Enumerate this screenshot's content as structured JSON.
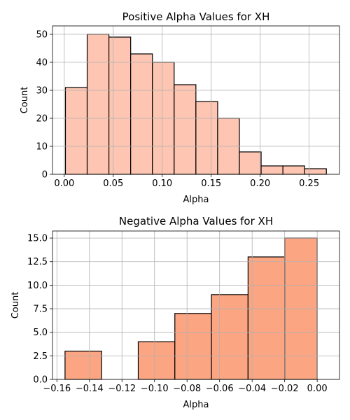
{
  "chart_data": [
    {
      "type": "bar",
      "title": "Positive Alpha Values for XH",
      "xlabel": "Alpha",
      "ylabel": "Count",
      "bin_edges": [
        0.0012,
        0.0234,
        0.0456,
        0.0678,
        0.09,
        0.1122,
        0.1344,
        0.1566,
        0.1788,
        0.201,
        0.2232,
        0.2454,
        0.2676
      ],
      "values": [
        31,
        50,
        49,
        43,
        40,
        32,
        26,
        20,
        8,
        3,
        3,
        2
      ],
      "xlim": [
        -0.012,
        0.281
      ],
      "ylim": [
        0,
        53
      ],
      "xticks": [
        0.0,
        0.05,
        0.1,
        0.15,
        0.2,
        0.25
      ],
      "xtick_labels": [
        "0.00",
        "0.05",
        "0.10",
        "0.15",
        "0.20",
        "0.25"
      ],
      "yticks": [
        0,
        10,
        20,
        30,
        40,
        50
      ],
      "ytick_labels": [
        "0",
        "10",
        "20",
        "30",
        "40",
        "50"
      ],
      "grid": true,
      "color": "#fdc5b2"
    },
    {
      "type": "bar",
      "title": "Negative Alpha Values for XH",
      "xlabel": "Alpha",
      "ylabel": "Count",
      "bin_edges": [
        -0.155,
        -0.1325,
        -0.11,
        -0.0875,
        -0.065,
        -0.0425,
        -0.02,
        0.0
      ],
      "values": [
        3,
        0,
        4,
        7,
        9,
        13,
        15
      ],
      "xlim": [
        -0.1627,
        0.0137
      ],
      "ylim": [
        0,
        15.75
      ],
      "xticks": [
        -0.16,
        -0.14,
        -0.12,
        -0.1,
        -0.08,
        -0.06,
        -0.04,
        -0.02,
        0.0
      ],
      "xtick_labels": [
        "−0.16",
        "−0.14",
        "−0.12",
        "−0.10",
        "−0.08",
        "−0.06",
        "−0.04",
        "−0.02",
        "0.00"
      ],
      "yticks": [
        0,
        2.5,
        5,
        7.5,
        10,
        12.5,
        15
      ],
      "ytick_labels": [
        "0.0",
        "2.5",
        "5.0",
        "7.5",
        "10.0",
        "12.5",
        "15.0"
      ],
      "grid": true,
      "color": "#fca583"
    }
  ]
}
